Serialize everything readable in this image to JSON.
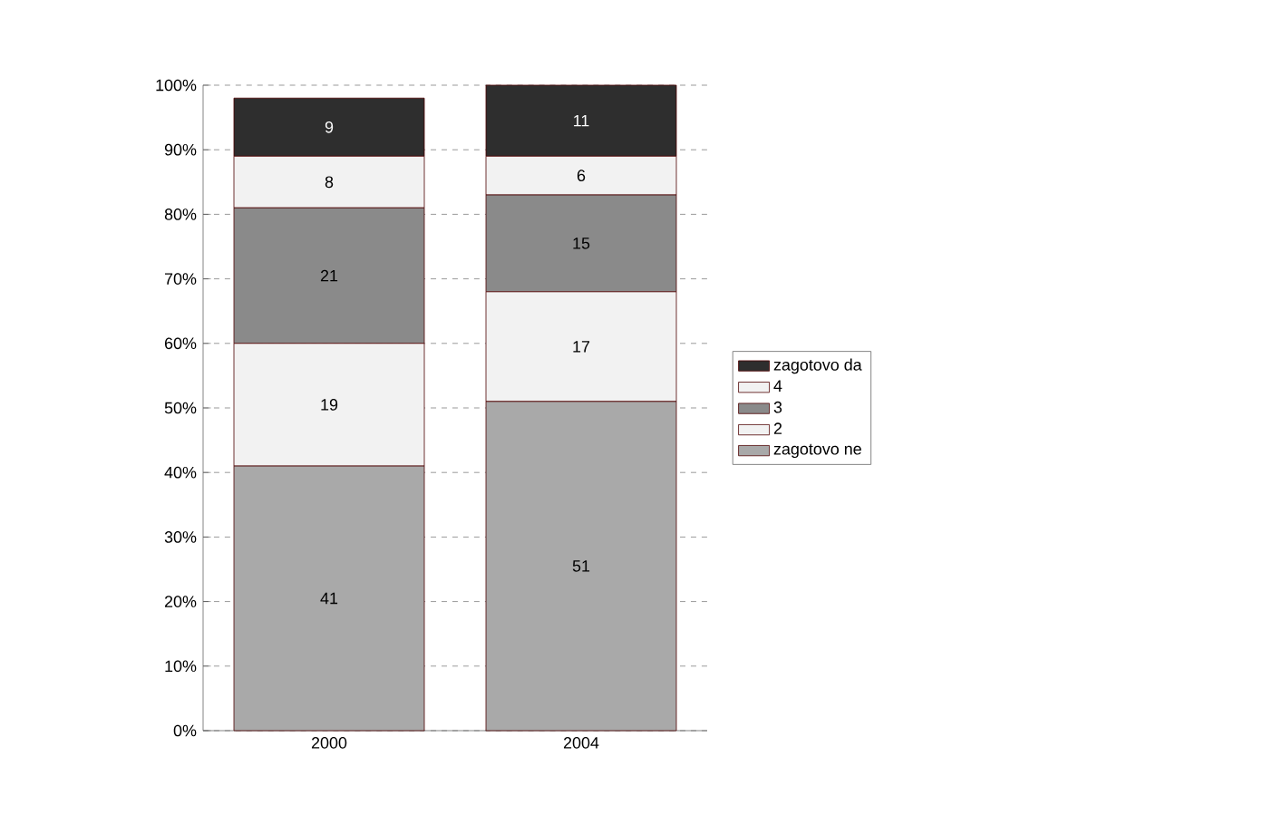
{
  "chart_data": {
    "type": "bar",
    "stacked": true,
    "categories": [
      "2000",
      "2004"
    ],
    "series": [
      {
        "name": "zagotovo ne",
        "color": "#a9a9a9",
        "values": [
          41,
          51
        ]
      },
      {
        "name": "2",
        "color": "#f2f2f2",
        "values": [
          19,
          17
        ]
      },
      {
        "name": "3",
        "color": "#8a8a8a",
        "values": [
          21,
          15
        ]
      },
      {
        "name": "4",
        "color": "#f2f2f2",
        "values": [
          8,
          6
        ]
      },
      {
        "name": "zagotovo da",
        "color": "#2e2e2e",
        "values": [
          9,
          11
        ]
      }
    ],
    "ylim": [
      0,
      100
    ],
    "yticks": [
      {
        "value": 0,
        "label": "0%"
      },
      {
        "value": 10,
        "label": "10%"
      },
      {
        "value": 20,
        "label": "20%"
      },
      {
        "value": 30,
        "label": "30%"
      },
      {
        "value": 40,
        "label": "40%"
      },
      {
        "value": 50,
        "label": "50%"
      },
      {
        "value": 60,
        "label": "60%"
      },
      {
        "value": 70,
        "label": "70%"
      },
      {
        "value": 80,
        "label": "80%"
      },
      {
        "value": 90,
        "label": "90%"
      },
      {
        "value": 100,
        "label": "100%"
      }
    ],
    "grid": "y",
    "legend": "right",
    "data_labels": true
  }
}
